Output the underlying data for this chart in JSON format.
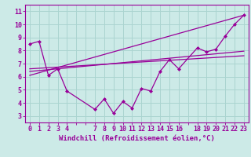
{
  "background_color": "#cceae7",
  "grid_color": "#aad4d0",
  "line_color": "#990099",
  "marker_color": "#990099",
  "xlabel": "Windchill (Refroidissement éolien,°C)",
  "xlabel_fontsize": 6.5,
  "tick_fontsize": 6.0,
  "xlim": [
    -0.5,
    23.5
  ],
  "ylim": [
    2.5,
    11.5
  ],
  "yticks": [
    3,
    4,
    5,
    6,
    7,
    8,
    9,
    10,
    11
  ],
  "xticks": [
    0,
    1,
    2,
    3,
    4,
    5,
    6,
    7,
    8,
    9,
    10,
    11,
    12,
    13,
    14,
    15,
    16,
    17,
    18,
    19,
    20,
    21,
    22,
    23
  ],
  "xticklabels": [
    "0",
    "1",
    "2",
    "3",
    "4",
    "",
    "",
    "7",
    "8",
    "9",
    "10",
    "11",
    "12",
    "13",
    "14",
    "15",
    "16",
    "",
    "18",
    "19",
    "20",
    "21",
    "22",
    "23"
  ],
  "series1_x": [
    0,
    1,
    2,
    3,
    4,
    7,
    8,
    9,
    10,
    11,
    12,
    13,
    14,
    15,
    16,
    18,
    19,
    20,
    21,
    22,
    23
  ],
  "series1_y": [
    8.5,
    8.7,
    6.1,
    6.6,
    4.9,
    3.5,
    4.3,
    3.2,
    4.1,
    3.6,
    5.1,
    4.9,
    6.4,
    7.3,
    6.6,
    8.2,
    7.9,
    8.1,
    9.1,
    10.0,
    10.7
  ],
  "series2_x": [
    0,
    23
  ],
  "series2_y": [
    6.1,
    10.7
  ],
  "series3_x": [
    0,
    23
  ],
  "series3_y": [
    6.4,
    7.95
  ],
  "series4_x": [
    0,
    23
  ],
  "series4_y": [
    6.6,
    7.6
  ]
}
